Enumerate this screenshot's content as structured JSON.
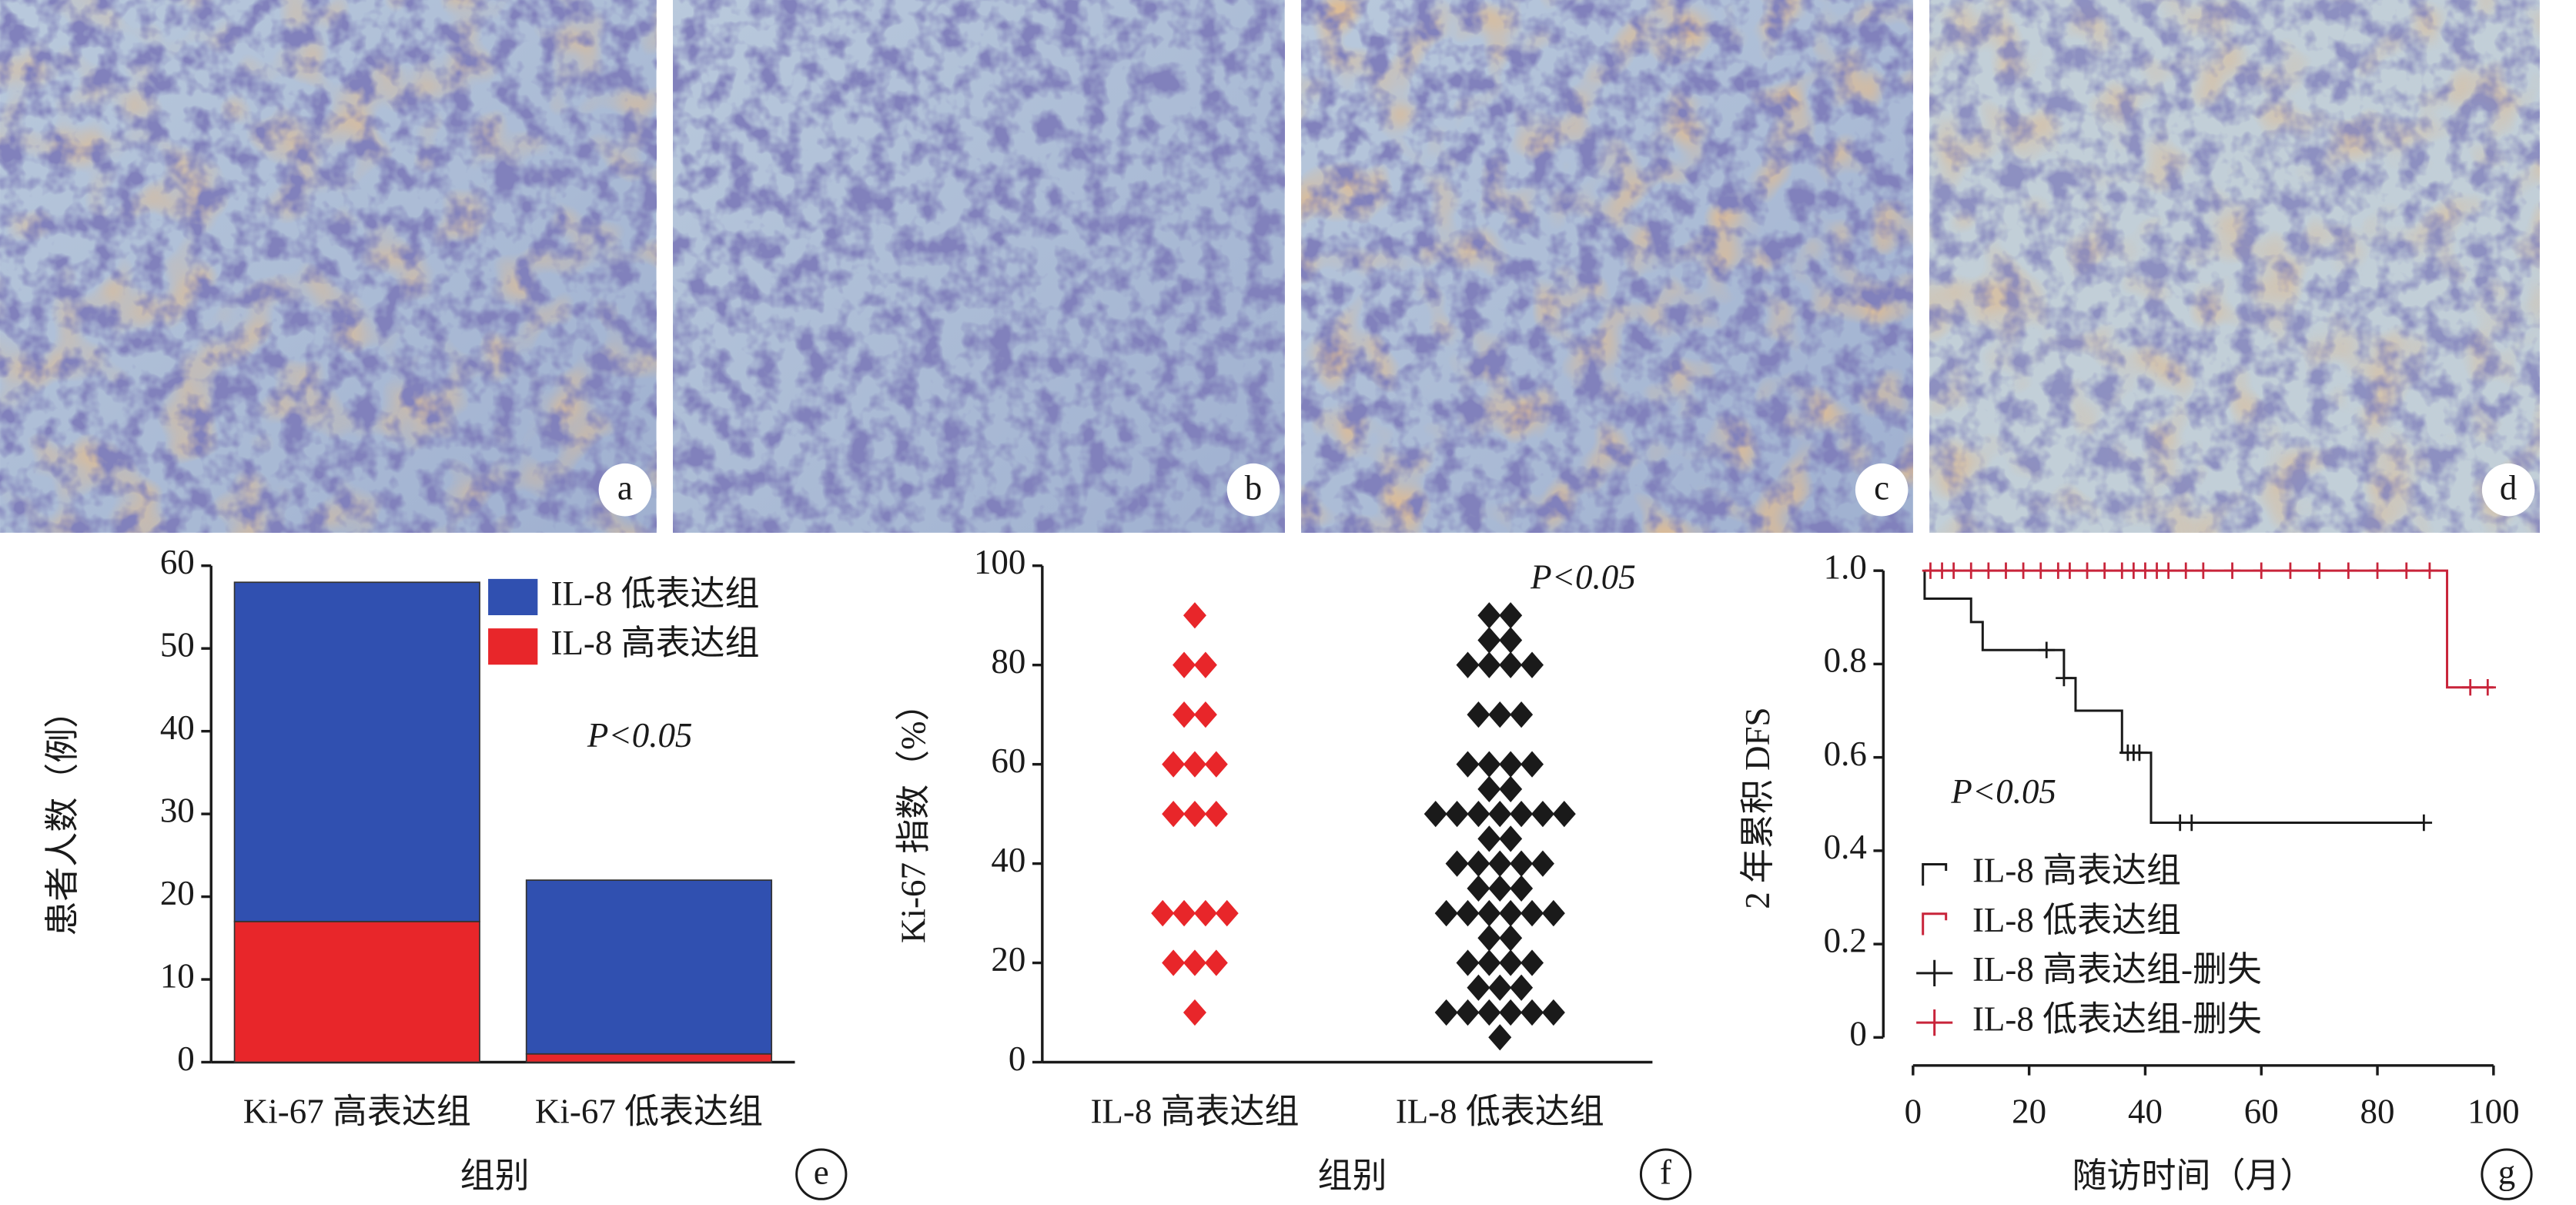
{
  "images": [
    {
      "label": "a"
    },
    {
      "label": "b"
    },
    {
      "label": "c"
    },
    {
      "label": "d"
    }
  ],
  "chart_data": [
    {
      "type": "stacked_bar",
      "panel": "e",
      "annotation": "P<0.05",
      "xlabel": "组别",
      "ylabel": "患者人数（例）",
      "categories": [
        "Ki-67 高表达组",
        "Ki-67 低表达组"
      ],
      "series": [
        {
          "name": "IL-8 高表达组",
          "color": "#e8262a",
          "values": [
            17,
            1
          ]
        },
        {
          "name": "IL-8 低表达组",
          "color": "#3050b0",
          "values": [
            41,
            21
          ]
        }
      ],
      "ylim": [
        0,
        60
      ],
      "yticks": [
        0,
        10,
        20,
        30,
        40,
        50,
        60
      ]
    },
    {
      "type": "strip",
      "panel": "f",
      "annotation": "P<0.05",
      "xlabel": "组别",
      "ylabel": "Ki-67 指数（%）",
      "categories": [
        "IL-8 高表达组",
        "IL-8 低表达组"
      ],
      "series": [
        {
          "color": "#e8262a",
          "values": [
            90,
            80,
            80,
            70,
            70,
            60,
            60,
            60,
            50,
            50,
            50,
            30,
            30,
            30,
            30,
            20,
            20,
            20,
            10
          ]
        },
        {
          "color": "#1a1a1a",
          "values": [
            90,
            90,
            85,
            85,
            80,
            80,
            80,
            80,
            70,
            70,
            70,
            60,
            60,
            60,
            60,
            55,
            55,
            50,
            50,
            50,
            50,
            50,
            50,
            50,
            45,
            45,
            40,
            40,
            40,
            40,
            40,
            35,
            35,
            35,
            30,
            30,
            30,
            30,
            30,
            30,
            25,
            25,
            20,
            20,
            20,
            20,
            15,
            15,
            15,
            10,
            10,
            10,
            10,
            10,
            10,
            5
          ]
        }
      ],
      "ylim": [
        0,
        100
      ],
      "yticks": [
        0,
        20,
        40,
        60,
        80,
        100
      ]
    },
    {
      "type": "survival",
      "panel": "g",
      "annotation": "P<0.05",
      "xlabel": "随访时间（月）",
      "ylabel": "2 年累积 DFS",
      "series": [
        {
          "name": "IL-8 高表达组",
          "color": "#1a1a1a",
          "x": [
            2,
            2,
            10,
            10,
            12,
            12,
            26,
            26,
            28,
            28,
            36,
            36,
            41,
            41,
            88
          ],
          "values": [
            1,
            0.94,
            0.94,
            0.89,
            0.89,
            0.83,
            0.83,
            0.77,
            0.77,
            0.7,
            0.7,
            0.61,
            0.61,
            0.46,
            0.46
          ]
        },
        {
          "name": "IL-8 低表达组",
          "color": "#c8243a",
          "x": [
            2,
            92,
            92,
            100
          ],
          "values": [
            1,
            1,
            0.75,
            0.75
          ]
        },
        {
          "name": "IL-8 高表达组-删失",
          "color": "#1a1a1a",
          "marker": "+",
          "x": [
            23,
            26,
            37,
            38,
            39,
            46,
            48,
            88
          ],
          "values": [
            0.83,
            0.77,
            0.61,
            0.61,
            0.61,
            0.46,
            0.46,
            0.46
          ]
        },
        {
          "name": "IL-8 低表达组-删失",
          "color": "#c8243a",
          "marker": "+",
          "x": [
            3,
            5,
            7,
            10,
            13,
            16,
            19,
            22,
            25,
            27,
            30,
            33,
            36,
            38,
            40,
            42,
            44,
            47,
            50,
            55,
            60,
            65,
            70,
            75,
            80,
            85,
            89,
            96,
            99
          ],
          "values": [
            1,
            1,
            1,
            1,
            1,
            1,
            1,
            1,
            1,
            1,
            1,
            1,
            1,
            1,
            1,
            1,
            1,
            1,
            1,
            1,
            1,
            1,
            1,
            1,
            1,
            1,
            1,
            0.75,
            0.75
          ]
        }
      ],
      "xlim": [
        0,
        100
      ],
      "xticks": [
        0,
        20,
        40,
        60,
        80,
        100
      ],
      "ylim": [
        0,
        1
      ],
      "yticks": [
        0,
        0.2,
        0.4,
        0.6,
        0.8,
        {
          "value": 1,
          "label": "1.0"
        }
      ]
    }
  ]
}
